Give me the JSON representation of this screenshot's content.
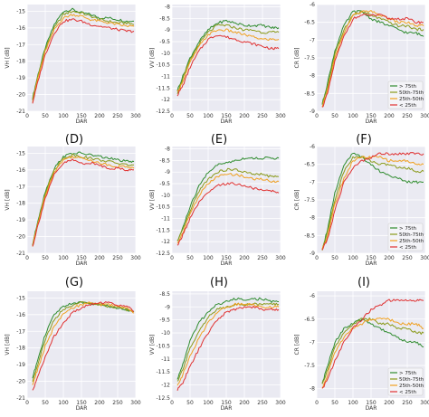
{
  "figure": {
    "row_labels": [
      "(D)",
      "(E)",
      "(F)",
      "(G)",
      "(H)",
      "(I)"
    ]
  },
  "legend_entries": [
    "> 75th",
    "50th-75th",
    "25th-50th",
    "< 25th"
  ],
  "colors": {
    "gt75": "#2e8b2e",
    "p50_75": "#8a9a1a",
    "p25_50": "#f0a020",
    "lt25": "#e03030"
  },
  "chart_data": [
    {
      "type": "line",
      "xlabel": "DAR",
      "ylabel": "VH [dB]",
      "xlim": [
        0,
        300
      ],
      "ylim": [
        -21,
        -14.6
      ],
      "xticks": [
        0,
        50,
        100,
        150,
        200,
        250,
        300
      ],
      "yticks": [
        -21,
        -20,
        -19,
        -18,
        -17,
        -16,
        -15
      ],
      "x": [
        15,
        30,
        50,
        75,
        100,
        125,
        150,
        175,
        200,
        225,
        250,
        275,
        295
      ],
      "series": [
        {
          "color": "#2e8b2e",
          "values": [
            -20.2,
            -18.8,
            -17.2,
            -15.8,
            -15.0,
            -14.9,
            -15.1,
            -15.2,
            -15.4,
            -15.4,
            -15.5,
            -15.6,
            -15.6
          ]
        },
        {
          "color": "#8a9a1a",
          "values": [
            -20.3,
            -18.9,
            -17.3,
            -16.0,
            -15.2,
            -15.0,
            -15.1,
            -15.3,
            -15.5,
            -15.6,
            -15.7,
            -15.7,
            -15.8
          ]
        },
        {
          "color": "#f0a020",
          "values": [
            -20.4,
            -19.0,
            -17.4,
            -16.1,
            -15.4,
            -15.2,
            -15.3,
            -15.5,
            -15.6,
            -15.7,
            -15.8,
            -15.9,
            -15.9
          ]
        },
        {
          "color": "#e03030",
          "values": [
            -20.5,
            -19.2,
            -17.6,
            -16.3,
            -15.6,
            -15.5,
            -15.6,
            -15.8,
            -15.9,
            -16.0,
            -16.1,
            -16.2,
            -16.2
          ]
        }
      ]
    },
    {
      "type": "line",
      "xlabel": "DAR",
      "ylabel": "VV [dB]",
      "xlim": [
        0,
        300
      ],
      "ylim": [
        -12.5,
        -7.9
      ],
      "xticks": [
        0,
        50,
        100,
        150,
        200,
        250,
        300
      ],
      "yticks": [
        -12.5,
        -12.0,
        -11.5,
        -11.0,
        -10.5,
        -10.0,
        -9.5,
        -9.0,
        -8.5,
        -8.0
      ],
      "x": [
        15,
        30,
        50,
        75,
        100,
        125,
        150,
        175,
        200,
        225,
        250,
        275,
        295
      ],
      "series": [
        {
          "color": "#2e8b2e",
          "values": [
            -11.6,
            -11.0,
            -10.2,
            -9.5,
            -9.0,
            -8.7,
            -8.6,
            -8.7,
            -8.8,
            -8.8,
            -8.8,
            -8.9,
            -8.9
          ]
        },
        {
          "color": "#8a9a1a",
          "values": [
            -11.7,
            -11.1,
            -10.3,
            -9.6,
            -9.1,
            -8.8,
            -8.8,
            -8.9,
            -9.0,
            -9.0,
            -9.1,
            -9.1,
            -9.1
          ]
        },
        {
          "color": "#f0a020",
          "values": [
            -11.7,
            -11.2,
            -10.4,
            -9.7,
            -9.2,
            -9.0,
            -9.0,
            -9.1,
            -9.2,
            -9.3,
            -9.4,
            -9.4,
            -9.4
          ]
        },
        {
          "color": "#e03030",
          "values": [
            -11.8,
            -11.4,
            -10.6,
            -9.9,
            -9.4,
            -9.2,
            -9.3,
            -9.4,
            -9.5,
            -9.6,
            -9.7,
            -9.8,
            -9.8
          ]
        }
      ]
    },
    {
      "type": "line",
      "xlabel": "DAR",
      "ylabel": "CR [dB]",
      "xlim": [
        0,
        300
      ],
      "ylim": [
        -9,
        -6
      ],
      "xticks": [
        0,
        50,
        100,
        150,
        200,
        250,
        300
      ],
      "yticks": [
        -9.0,
        -8.5,
        -8.0,
        -7.5,
        -7.0,
        -6.5,
        -6.0
      ],
      "x": [
        15,
        30,
        50,
        75,
        100,
        125,
        150,
        175,
        200,
        225,
        250,
        275,
        295
      ],
      "series": [
        {
          "color": "#2e8b2e",
          "values": [
            -8.8,
            -8.2,
            -7.3,
            -6.6,
            -6.2,
            -6.2,
            -6.4,
            -6.5,
            -6.6,
            -6.7,
            -6.8,
            -6.8,
            -6.9
          ]
        },
        {
          "color": "#8a9a1a",
          "values": [
            -8.8,
            -8.3,
            -7.4,
            -6.7,
            -6.3,
            -6.2,
            -6.3,
            -6.4,
            -6.5,
            -6.6,
            -6.6,
            -6.7,
            -6.7
          ]
        },
        {
          "color": "#f0a020",
          "values": [
            -8.9,
            -8.4,
            -7.5,
            -6.8,
            -6.3,
            -6.2,
            -6.2,
            -6.3,
            -6.4,
            -6.5,
            -6.5,
            -6.6,
            -6.6
          ]
        },
        {
          "color": "#e03030",
          "values": [
            -8.9,
            -8.5,
            -7.6,
            -6.9,
            -6.4,
            -6.3,
            -6.3,
            -6.3,
            -6.4,
            -6.4,
            -6.4,
            -6.5,
            -6.5
          ]
        }
      ],
      "legend": "bottom-right"
    },
    {
      "type": "line",
      "xlabel": "DAR",
      "ylabel": "VH [dB]",
      "xlim": [
        0,
        300
      ],
      "ylim": [
        -21,
        -14.6
      ],
      "xticks": [
        0,
        50,
        100,
        150,
        200,
        250,
        300
      ],
      "yticks": [
        -21,
        -20,
        -19,
        -18,
        -17,
        -16,
        -15
      ],
      "x": [
        15,
        30,
        50,
        75,
        100,
        125,
        150,
        175,
        200,
        225,
        250,
        275,
        295
      ],
      "series": [
        {
          "color": "#2e8b2e",
          "values": [
            -20.5,
            -19.0,
            -17.3,
            -15.9,
            -15.2,
            -15.0,
            -15.0,
            -15.1,
            -15.2,
            -15.3,
            -15.4,
            -15.5,
            -15.5
          ]
        },
        {
          "color": "#8a9a1a",
          "values": [
            -20.5,
            -19.1,
            -17.4,
            -16.0,
            -15.3,
            -15.1,
            -15.2,
            -15.3,
            -15.4,
            -15.5,
            -15.6,
            -15.7,
            -15.7
          ]
        },
        {
          "color": "#f0a020",
          "values": [
            -20.6,
            -19.2,
            -17.5,
            -16.1,
            -15.4,
            -15.2,
            -15.3,
            -15.4,
            -15.6,
            -15.7,
            -15.8,
            -15.8,
            -15.9
          ]
        },
        {
          "color": "#e03030",
          "values": [
            -20.6,
            -19.3,
            -17.7,
            -16.3,
            -15.6,
            -15.4,
            -15.6,
            -15.6,
            -15.7,
            -15.9,
            -15.9,
            -16.0,
            -16.0
          ]
        }
      ]
    },
    {
      "type": "line",
      "xlabel": "DAR",
      "ylabel": "VV [dB]",
      "xlim": [
        0,
        300
      ],
      "ylim": [
        -12.5,
        -7.9
      ],
      "xticks": [
        0,
        50,
        100,
        150,
        200,
        250,
        300
      ],
      "yticks": [
        -12.5,
        -12.0,
        -11.5,
        -11.0,
        -10.5,
        -10.0,
        -9.5,
        -9.0,
        -8.5,
        -8.0
      ],
      "x": [
        15,
        30,
        50,
        75,
        100,
        125,
        150,
        175,
        200,
        225,
        250,
        275,
        295
      ],
      "series": [
        {
          "color": "#2e8b2e",
          "values": [
            -12.0,
            -11.4,
            -10.5,
            -9.6,
            -9.0,
            -8.7,
            -8.6,
            -8.5,
            -8.4,
            -8.4,
            -8.4,
            -8.4,
            -8.4
          ]
        },
        {
          "color": "#8a9a1a",
          "values": [
            -12.0,
            -11.5,
            -10.7,
            -9.8,
            -9.3,
            -9.0,
            -8.9,
            -8.9,
            -9.0,
            -9.1,
            -9.1,
            -9.2,
            -9.2
          ]
        },
        {
          "color": "#f0a020",
          "values": [
            -12.1,
            -11.6,
            -10.8,
            -10.0,
            -9.5,
            -9.2,
            -9.1,
            -9.1,
            -9.2,
            -9.3,
            -9.3,
            -9.4,
            -9.4
          ]
        },
        {
          "color": "#e03030",
          "values": [
            -12.2,
            -11.7,
            -11.0,
            -10.3,
            -9.9,
            -9.6,
            -9.5,
            -9.5,
            -9.6,
            -9.7,
            -9.8,
            -9.8,
            -9.9
          ]
        }
      ]
    },
    {
      "type": "line",
      "xlabel": "DAR",
      "ylabel": "CR [dB]",
      "xlim": [
        0,
        300
      ],
      "ylim": [
        -9,
        -6
      ],
      "xticks": [
        0,
        50,
        100,
        150,
        200,
        250,
        300
      ],
      "yticks": [
        -9.0,
        -8.5,
        -8.0,
        -7.5,
        -7.0,
        -6.5,
        -6.0
      ],
      "x": [
        15,
        30,
        50,
        75,
        100,
        125,
        150,
        175,
        200,
        225,
        250,
        275,
        295
      ],
      "series": [
        {
          "color": "#2e8b2e",
          "values": [
            -8.9,
            -8.3,
            -7.3,
            -6.5,
            -6.2,
            -6.3,
            -6.5,
            -6.7,
            -6.8,
            -6.9,
            -7.0,
            -7.0,
            -7.0
          ]
        },
        {
          "color": "#8a9a1a",
          "values": [
            -8.9,
            -8.4,
            -7.5,
            -6.7,
            -6.3,
            -6.3,
            -6.4,
            -6.5,
            -6.5,
            -6.6,
            -6.6,
            -6.7,
            -6.7
          ]
        },
        {
          "color": "#f0a020",
          "values": [
            -8.9,
            -8.5,
            -7.6,
            -6.9,
            -6.4,
            -6.3,
            -6.3,
            -6.3,
            -6.4,
            -6.4,
            -6.4,
            -6.5,
            -6.5
          ]
        },
        {
          "color": "#e03030",
          "values": [
            -8.9,
            -8.6,
            -7.8,
            -7.0,
            -6.6,
            -6.4,
            -6.3,
            -6.2,
            -6.2,
            -6.2,
            -6.2,
            -6.2,
            -6.2
          ]
        }
      ],
      "legend": "bottom-right"
    },
    {
      "type": "line",
      "xlabel": "DAR",
      "ylabel": "VH [dB]",
      "xlim": [
        0,
        300
      ],
      "ylim": [
        -21,
        -14.6
      ],
      "xticks": [
        0,
        50,
        100,
        150,
        200,
        250,
        300
      ],
      "yticks": [
        -21,
        -20,
        -19,
        -18,
        -17,
        -16,
        -15
      ],
      "x": [
        15,
        30,
        50,
        75,
        100,
        125,
        150,
        175,
        200,
        225,
        250,
        275,
        295
      ],
      "series": [
        {
          "color": "#2e8b2e",
          "values": [
            -19.8,
            -18.6,
            -17.2,
            -16.0,
            -15.5,
            -15.3,
            -15.3,
            -15.3,
            -15.4,
            -15.5,
            -15.6,
            -15.7,
            -15.8
          ]
        },
        {
          "color": "#8a9a1a",
          "values": [
            -20.0,
            -18.9,
            -17.5,
            -16.3,
            -15.7,
            -15.4,
            -15.3,
            -15.3,
            -15.4,
            -15.5,
            -15.6,
            -15.7,
            -15.8
          ]
        },
        {
          "color": "#f0a020",
          "values": [
            -20.2,
            -19.2,
            -17.9,
            -16.7,
            -16.0,
            -15.6,
            -15.4,
            -15.3,
            -15.4,
            -15.4,
            -15.5,
            -15.6,
            -15.9
          ]
        },
        {
          "color": "#e03030",
          "values": [
            -20.6,
            -19.7,
            -18.5,
            -17.3,
            -16.5,
            -15.9,
            -15.6,
            -15.4,
            -15.3,
            -15.3,
            -15.4,
            -15.5,
            -15.8
          ]
        }
      ]
    },
    {
      "type": "line",
      "xlabel": "DAR",
      "ylabel": "VV [dB]",
      "xlim": [
        0,
        300
      ],
      "ylim": [
        -12.5,
        -8.4
      ],
      "xticks": [
        0,
        50,
        100,
        150,
        200,
        250,
        300
      ],
      "yticks": [
        -12.5,
        -12.0,
        -11.5,
        -11.0,
        -10.5,
        -10.0,
        -9.5,
        -9.0,
        -8.5
      ],
      "x": [
        15,
        30,
        50,
        75,
        100,
        125,
        150,
        175,
        200,
        225,
        250,
        275,
        295
      ],
      "series": [
        {
          "color": "#2e8b2e",
          "values": [
            -11.8,
            -11.2,
            -10.3,
            -9.6,
            -9.2,
            -8.9,
            -8.8,
            -8.7,
            -8.7,
            -8.7,
            -8.7,
            -8.8,
            -8.8
          ]
        },
        {
          "color": "#8a9a1a",
          "values": [
            -11.9,
            -11.4,
            -10.6,
            -9.9,
            -9.4,
            -9.1,
            -9.0,
            -8.9,
            -8.9,
            -8.9,
            -8.9,
            -8.9,
            -8.9
          ]
        },
        {
          "color": "#f0a020",
          "values": [
            -12.0,
            -11.6,
            -10.9,
            -10.2,
            -9.6,
            -9.2,
            -9.0,
            -8.9,
            -8.9,
            -8.9,
            -9.0,
            -9.0,
            -9.0
          ]
        },
        {
          "color": "#e03030",
          "values": [
            -12.2,
            -11.9,
            -11.3,
            -10.6,
            -10.0,
            -9.5,
            -9.2,
            -9.1,
            -9.0,
            -9.0,
            -9.1,
            -9.1,
            -9.1
          ]
        }
      ]
    },
    {
      "type": "line",
      "xlabel": "DAR",
      "ylabel": "CR [dB]",
      "xlim": [
        0,
        300
      ],
      "ylim": [
        -8.2,
        -5.9
      ],
      "xticks": [
        0,
        50,
        100,
        150,
        200,
        250,
        300
      ],
      "yticks": [
        -8.0,
        -7.5,
        -7.0,
        -6.5,
        -6.0
      ],
      "x": [
        15,
        30,
        50,
        75,
        100,
        125,
        150,
        175,
        200,
        225,
        250,
        275,
        295
      ],
      "series": [
        {
          "color": "#2e8b2e",
          "values": [
            -7.9,
            -7.5,
            -7.0,
            -6.7,
            -6.6,
            -6.5,
            -6.6,
            -6.7,
            -6.8,
            -6.9,
            -7.0,
            -7.0,
            -7.1
          ]
        },
        {
          "color": "#8a9a1a",
          "values": [
            -7.9,
            -7.6,
            -7.1,
            -6.8,
            -6.6,
            -6.5,
            -6.5,
            -6.6,
            -6.6,
            -6.7,
            -6.7,
            -6.8,
            -6.8
          ]
        },
        {
          "color": "#f0a020",
          "values": [
            -8.0,
            -7.7,
            -7.2,
            -6.9,
            -6.7,
            -6.6,
            -6.5,
            -6.5,
            -6.5,
            -6.6,
            -6.6,
            -6.6,
            -6.7
          ]
        },
        {
          "color": "#e03030",
          "values": [
            -8.0,
            -7.8,
            -7.4,
            -7.0,
            -6.7,
            -6.5,
            -6.3,
            -6.2,
            -6.1,
            -6.1,
            -6.1,
            -6.1,
            -6.1
          ]
        }
      ],
      "legend": "bottom-right"
    }
  ]
}
